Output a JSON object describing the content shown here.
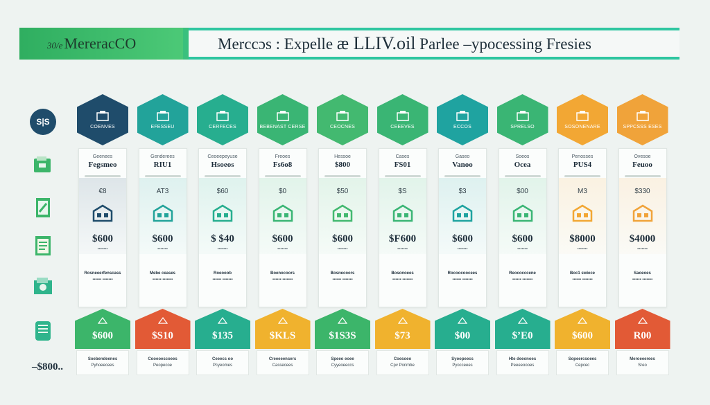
{
  "header": {
    "brand_prefix": "30/e",
    "brand": "MereracCO",
    "title_left": "Merccɔs : Expelle",
    "title_mid": "æ LLIV.oil",
    "title_right": "Parlee –ypocessing Fresies"
  },
  "left_icons": [
    {
      "icon": "ss-badge-icon",
      "label": "S|S"
    },
    {
      "icon": "wallet-icon"
    },
    {
      "icon": "document-arrow-icon"
    },
    {
      "icon": "notepad-icon"
    },
    {
      "icon": "money-folder-icon"
    },
    {
      "icon": "receipt-icon"
    }
  ],
  "left_price": "–$800..",
  "columns": [
    {
      "color": "#1f4c6b",
      "hex_label": "coenves",
      "sub": "Geenees",
      "name": "Fegsmeo",
      "small": "€8",
      "price": "$600",
      "price_sub": "▪▪▪▪▪▪▪",
      "desc_title": "Rosneeerfenscass",
      "desc": "▪▪▪▪▪▪ ▪▪▪▪▪▪▪",
      "pent_color": "#3cb56a",
      "pent_price": "$600",
      "foot_title": "Soebendeenes",
      "foot": "Pyhoeecees"
    },
    {
      "color": "#22a39a",
      "hex_label": "efesseu",
      "sub": "Genderees",
      "name": "RIU1",
      "small": "AT3",
      "price": "$600",
      "price_sub": "▪▪▪▪▪▪▪",
      "desc_title": "Mebe ceases",
      "desc": "▪▪▪▪▪▪ ▪▪▪▪▪▪▪",
      "pent_color": "#e25a36",
      "pent_price": "$S10",
      "foot_title": "Cooeoescoees",
      "foot": "Peopecoe"
    },
    {
      "color": "#27ae8f",
      "hex_label": "cerfeces",
      "sub": "Ceoeepeyuse",
      "name": "Hsoeos",
      "small": "$60",
      "price": "$ $40",
      "price_sub": "▪▪▪▪▪▪▪",
      "desc_title": "Roeooob",
      "desc": "▪▪▪▪▪▪ ▪▪▪▪▪▪▪",
      "pent_color": "#27ae8f",
      "pent_price": "$135",
      "foot_title": "Ceeecs oo",
      "foot": "Pcyeomes"
    },
    {
      "color": "#3ab574",
      "hex_label": "bebenast cerse",
      "sub": "Freoes",
      "name": "Fs6o8",
      "small": "$0",
      "price": "$600",
      "price_sub": "▪▪▪▪▪▪▪",
      "desc_title": "Boenocoors",
      "desc": "▪▪▪▪▪▪ ▪▪▪▪▪▪▪",
      "pent_color": "#f0b22e",
      "pent_price": "$KLS",
      "foot_title": "Creeeeensers",
      "foot": "Cassecees"
    },
    {
      "color": "#43b970",
      "hex_label": "ceocnes",
      "sub": "Hessoe",
      "name": "$800",
      "small": "$50",
      "price": "$600",
      "price_sub": "▪▪▪▪▪▪▪",
      "desc_title": "Bosnecoors",
      "desc": "▪▪▪▪▪▪ ▪▪▪▪▪▪▪",
      "pent_color": "#3cb56a",
      "pent_price": "$1S3S",
      "foot_title": "Speeo eoee",
      "foot": "Cyyeoeeccs"
    },
    {
      "color": "#3ab574",
      "hex_label": "ceeeves",
      "sub": "Cases",
      "name": "FS01",
      "small": "$S",
      "price": "$F600",
      "price_sub": "▪▪▪▪▪▪▪",
      "desc_title": "Bosonoees",
      "desc": "▪▪▪▪▪▪ ▪▪▪▪▪▪▪",
      "pent_color": "#f0b22e",
      "pent_price": "$73",
      "foot_title": "Coesoeo",
      "foot": "Cpv Ponmbe"
    },
    {
      "color": "#1fa3a0",
      "hex_label": "eccos",
      "sub": "Gaseo",
      "name": "Vanoo",
      "small": "$3",
      "price": "$600",
      "price_sub": "▪▪▪▪▪▪▪",
      "desc_title": "Rocoocoocees",
      "desc": "▪▪▪▪▪▪ ▪▪▪▪▪▪▪",
      "pent_color": "#27ae8f",
      "pent_price": "$00",
      "foot_title": "Syoopeecs",
      "foot": "Pyocceees"
    },
    {
      "color": "#3ab574",
      "hex_label": "sprelso",
      "sub": "Soeos",
      "name": "Ocea",
      "small": "$00",
      "price": "$600",
      "price_sub": "▪▪▪▪▪▪▪",
      "desc_title": "Reococccene",
      "desc": "▪▪▪▪▪▪ ▪▪▪▪▪▪▪",
      "pent_color": "#27ae8f",
      "pent_price": "$’E0",
      "foot_title": "Hte deeonoes",
      "foot": "Peeeeoooes"
    },
    {
      "color": "#f2a734",
      "hex_label": "sosonenare",
      "sub": "Penosses",
      "name": "PUS4",
      "small": "M3",
      "price": "$8000",
      "price_sub": "▪▪▪▪▪▪▪",
      "desc_title": "Boc1 swiece",
      "desc": "▪▪▪▪▪▪ ▪▪▪▪▪▪▪",
      "pent_color": "#f0b22e",
      "pent_price": "$600",
      "foot_title": "Sopeercsoees",
      "foot": "Cepcec"
    },
    {
      "color": "#f0a33a",
      "hex_label": "sppcsss eses",
      "sub": "Ovesoe",
      "name": "Feuoo",
      "small": "$330",
      "price": "$4000",
      "price_sub": "▪▪▪▪▪▪▪",
      "desc_title": "Saoeoes",
      "desc": "▪▪▪▪▪▪ ▪▪▪▪▪▪▪",
      "pent_color": "#e25a36",
      "pent_price": "R00",
      "foot_title": "Meroeeerees",
      "foot": "Sreo"
    }
  ]
}
